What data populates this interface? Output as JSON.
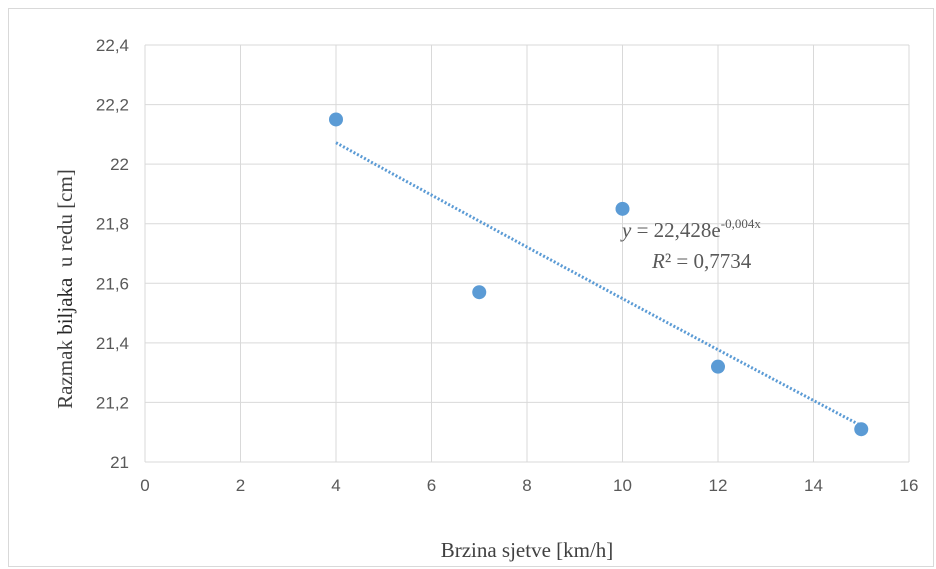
{
  "chart_data": {
    "type": "scatter",
    "xlabel": "Brzina sjetve [km/h]",
    "ylabel_parts": [
      "Razmak ",
      "biljaka",
      "  u redu [cm]"
    ],
    "xlim": [
      0,
      16
    ],
    "ylim": [
      21,
      22.4
    ],
    "x_ticks": [
      "0",
      "2",
      "4",
      "6",
      "8",
      "10",
      "12",
      "14",
      "16"
    ],
    "y_ticks": [
      "21",
      "21,2",
      "21,4",
      "21,6",
      "21,8",
      "22",
      "22,2",
      "22,4"
    ],
    "x_tick_values": [
      0,
      2,
      4,
      6,
      8,
      10,
      12,
      14,
      16
    ],
    "y_tick_values": [
      21,
      21.2,
      21.4,
      21.6,
      21.8,
      22,
      22.2,
      22.4
    ],
    "grid": true,
    "series": [
      {
        "points": [
          {
            "x": 4,
            "y": 22.15
          },
          {
            "x": 7,
            "y": 21.57
          },
          {
            "x": 10,
            "y": 21.85
          },
          {
            "x": 12,
            "y": 21.32
          },
          {
            "x": 15,
            "y": 21.11
          }
        ]
      }
    ],
    "trendline": {
      "type": "exponential",
      "a": 22.428,
      "b": -0.004,
      "x_range": [
        4,
        15
      ],
      "equation": {
        "y_var": "y",
        "eq_main": " = 22,428e",
        "eq_exp": "-0,004x",
        "r2_var": "R",
        "r2_rest": "² = 0,7734"
      }
    },
    "colors": {
      "marker": "#5b9bd5",
      "trendline": "#5b9bd5",
      "grid": "#d9d9d9",
      "axis_text": "#595959"
    }
  }
}
